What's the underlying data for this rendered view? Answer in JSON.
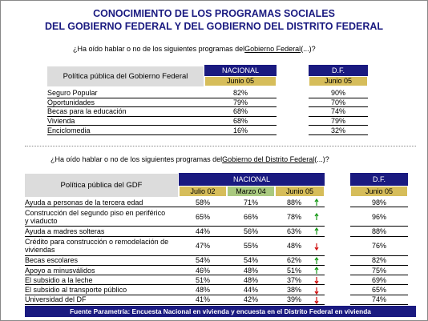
{
  "title": {
    "line1": "CONOCIMIENTO DE LOS PROGRAMAS SOCIALES",
    "line2": "DEL GOBIERNO FEDERAL Y DEL GOBIERNO DEL DISTRITO FEDERAL"
  },
  "question1": {
    "before": "¿Ha oído hablar o no de los siguientes programas del",
    "link": "Gobierno Federal",
    "after": "(...)?"
  },
  "table1": {
    "label_header": "Política pública del Gobierno Federal",
    "group1": "NACIONAL",
    "group1_sub": "Junio 05",
    "group2": "D.F.",
    "group2_sub": "Junio 05",
    "rows": [
      [
        "Seguro Popular",
        "82%",
        "90%"
      ],
      [
        "Oportunidades",
        "79%",
        "70%"
      ],
      [
        "Becas para la educación",
        "68%",
        "74%"
      ],
      [
        "Vivienda",
        "68%",
        "79%"
      ],
      [
        "Enciclomedia",
        "16%",
        "32%"
      ]
    ]
  },
  "question2": {
    "before": "¿Ha oído hablar o no de los siguientes programas del",
    "link": "Gobierno del Distrito Federal",
    "after": "(...)?"
  },
  "table2": {
    "label_header": "Política pública del GDF",
    "group1": "NACIONAL",
    "group1_subs": [
      "Julio 02",
      "Marzo 04",
      "Junio 05"
    ],
    "group2": "D.F.",
    "group2_sub": "Junio 05",
    "rows": [
      {
        "label": "Ayuda a personas de la tercera edad",
        "values": [
          "58%",
          "71%",
          "88%"
        ],
        "trend": "up",
        "df": "98%"
      },
      {
        "label": "Construcción del segundo piso en periférico y viaducto",
        "values": [
          "65%",
          "66%",
          "78%"
        ],
        "trend": "up",
        "df": "96%"
      },
      {
        "label": "Ayuda a madres solteras",
        "values": [
          "44%",
          "56%",
          "63%"
        ],
        "trend": "up",
        "df": "88%"
      },
      {
        "label": "Crédito para construcción o remodelación de viviendas",
        "values": [
          "47%",
          "55%",
          "48%"
        ],
        "trend": "down",
        "df": "76%"
      },
      {
        "label": "Becas escolares",
        "values": [
          "54%",
          "54%",
          "62%"
        ],
        "trend": "up",
        "df": "82%"
      },
      {
        "label": "Apoyo a minusválidos",
        "values": [
          "46%",
          "48%",
          "51%"
        ],
        "trend": "up",
        "df": "75%"
      },
      {
        "label": "El subsidio a la leche",
        "values": [
          "51%",
          "48%",
          "37%"
        ],
        "trend": "down",
        "df": "69%"
      },
      {
        "label": "El subsidio al transporte público",
        "values": [
          "48%",
          "44%",
          "38%"
        ],
        "trend": "down",
        "df": "65%"
      },
      {
        "label": "Universidad del DF",
        "values": [
          "41%",
          "42%",
          "39%"
        ],
        "trend": "down",
        "df": "74%"
      }
    ]
  },
  "footer": "Fuente Parametría: Encuesta Nacional en vivienda y encuesta en el Distrito Federal en vivienda"
}
